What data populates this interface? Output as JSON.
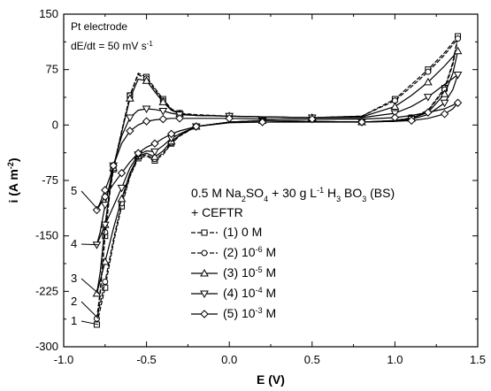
{
  "chart_data": {
    "type": "line",
    "xlabel": "E (V)",
    "ylabel": "i (A m-2)",
    "xlim": [
      -1.0,
      1.5
    ],
    "ylim": [
      -300,
      150
    ],
    "x_ticks": [
      "-1.0",
      "-0.5",
      "0.0",
      "0.5",
      "1.0",
      "1.5"
    ],
    "y_ticks": [
      "-300",
      "-225",
      "-150",
      "-75",
      "0",
      "75",
      "150"
    ],
    "annotations": {
      "electrode": "Pt electrode",
      "scan_rate_prefix": "dE/dt = 50 mV s",
      "scan_rate_exp": "-1"
    },
    "legend_title_line1": {
      "a": "0.5 M Na",
      "a_sub": "2",
      "b": "SO",
      "b_sub": "4",
      "c": "+ 30 g L",
      "c_sup": "-1",
      "d": " H",
      "d_sub": "3",
      "e": " BO",
      "e_sub": "3",
      "f": " (BS)"
    },
    "legend_title_line2": "+ CEFTR",
    "legend_placement": "lower-right",
    "series": [
      {
        "name": "(1) 0 M",
        "label_prefix": "(1) 0 M",
        "label_exp": "",
        "label_suffix": "",
        "curve_label": "1",
        "marker": "square",
        "dashed": true,
        "forward": [
          [
            -0.8,
            -270
          ],
          [
            -0.78,
            -230
          ],
          [
            -0.75,
            -150
          ],
          [
            -0.72,
            -90
          ],
          [
            -0.7,
            -60
          ],
          [
            -0.65,
            -10
          ],
          [
            -0.6,
            40
          ],
          [
            -0.55,
            70
          ],
          [
            -0.5,
            65
          ],
          [
            -0.45,
            50
          ],
          [
            -0.4,
            35
          ],
          [
            -0.35,
            22
          ],
          [
            -0.3,
            16
          ],
          [
            -0.2,
            14
          ],
          [
            0.0,
            12
          ],
          [
            0.2,
            11
          ],
          [
            0.5,
            10
          ],
          [
            0.8,
            12
          ],
          [
            1.0,
            35
          ],
          [
            1.1,
            55
          ],
          [
            1.2,
            75
          ],
          [
            1.3,
            98
          ],
          [
            1.38,
            120
          ]
        ],
        "reverse": [
          [
            1.38,
            120
          ],
          [
            1.35,
            85
          ],
          [
            1.3,
            50
          ],
          [
            1.2,
            20
          ],
          [
            1.1,
            10
          ],
          [
            1.0,
            6
          ],
          [
            0.8,
            4
          ],
          [
            0.5,
            5
          ],
          [
            0.2,
            6
          ],
          [
            0.0,
            4
          ],
          [
            -0.2,
            -2
          ],
          [
            -0.3,
            -15
          ],
          [
            -0.35,
            -25
          ],
          [
            -0.4,
            -40
          ],
          [
            -0.45,
            -48
          ],
          [
            -0.5,
            -42
          ],
          [
            -0.55,
            -45
          ],
          [
            -0.6,
            -70
          ],
          [
            -0.65,
            -110
          ],
          [
            -0.7,
            -160
          ],
          [
            -0.75,
            -220
          ],
          [
            -0.8,
            -270
          ]
        ]
      },
      {
        "name": "(2) 10 -6 M",
        "label_prefix": "(2) 10",
        "label_exp": "-6",
        "label_suffix": " M",
        "curve_label": "2",
        "marker": "circle",
        "dashed": true,
        "forward": [
          [
            -0.8,
            -262
          ],
          [
            -0.78,
            -225
          ],
          [
            -0.75,
            -145
          ],
          [
            -0.72,
            -88
          ],
          [
            -0.7,
            -58
          ],
          [
            -0.65,
            -8
          ],
          [
            -0.6,
            40
          ],
          [
            -0.55,
            68
          ],
          [
            -0.5,
            63
          ],
          [
            -0.45,
            48
          ],
          [
            -0.4,
            33
          ],
          [
            -0.35,
            21
          ],
          [
            -0.3,
            15
          ],
          [
            -0.2,
            13
          ],
          [
            0.0,
            12
          ],
          [
            0.2,
            11
          ],
          [
            0.5,
            10
          ],
          [
            0.8,
            12
          ],
          [
            1.0,
            33
          ],
          [
            1.1,
            52
          ],
          [
            1.2,
            72
          ],
          [
            1.3,
            95
          ],
          [
            1.38,
            117
          ]
        ],
        "reverse": [
          [
            1.38,
            117
          ],
          [
            1.35,
            82
          ],
          [
            1.3,
            48
          ],
          [
            1.2,
            19
          ],
          [
            1.1,
            9
          ],
          [
            1.0,
            6
          ],
          [
            0.8,
            4
          ],
          [
            0.5,
            5
          ],
          [
            0.2,
            6
          ],
          [
            0.0,
            4
          ],
          [
            -0.2,
            -2
          ],
          [
            -0.3,
            -14
          ],
          [
            -0.35,
            -24
          ],
          [
            -0.4,
            -38
          ],
          [
            -0.45,
            -46
          ],
          [
            -0.5,
            -40
          ],
          [
            -0.55,
            -43
          ],
          [
            -0.6,
            -68
          ],
          [
            -0.65,
            -106
          ],
          [
            -0.7,
            -155
          ],
          [
            -0.75,
            -212
          ],
          [
            -0.8,
            -262
          ]
        ]
      },
      {
        "name": "(3) 10 -5 M",
        "label_prefix": "(3) 10",
        "label_exp": "-5",
        "label_suffix": " M",
        "curve_label": "3",
        "marker": "triangle-up",
        "dashed": false,
        "forward": [
          [
            -0.8,
            -228
          ],
          [
            -0.78,
            -200
          ],
          [
            -0.75,
            -135
          ],
          [
            -0.72,
            -85
          ],
          [
            -0.7,
            -58
          ],
          [
            -0.65,
            -10
          ],
          [
            -0.6,
            36
          ],
          [
            -0.55,
            62
          ],
          [
            -0.5,
            60
          ],
          [
            -0.45,
            45
          ],
          [
            -0.4,
            31
          ],
          [
            -0.35,
            20
          ],
          [
            -0.3,
            15
          ],
          [
            -0.2,
            13
          ],
          [
            0.0,
            12
          ],
          [
            0.2,
            11
          ],
          [
            0.5,
            10
          ],
          [
            0.8,
            11
          ],
          [
            1.0,
            25
          ],
          [
            1.1,
            40
          ],
          [
            1.2,
            58
          ],
          [
            1.3,
            80
          ],
          [
            1.38,
            100
          ]
        ],
        "reverse": [
          [
            1.38,
            100
          ],
          [
            1.35,
            70
          ],
          [
            1.3,
            42
          ],
          [
            1.2,
            17
          ],
          [
            1.1,
            9
          ],
          [
            1.0,
            6
          ],
          [
            0.8,
            4
          ],
          [
            0.5,
            5
          ],
          [
            0.2,
            6
          ],
          [
            0.0,
            4
          ],
          [
            -0.2,
            -2
          ],
          [
            -0.3,
            -14
          ],
          [
            -0.35,
            -22
          ],
          [
            -0.4,
            -35
          ],
          [
            -0.45,
            -43
          ],
          [
            -0.5,
            -38
          ],
          [
            -0.55,
            -42
          ],
          [
            -0.6,
            -65
          ],
          [
            -0.65,
            -100
          ],
          [
            -0.7,
            -140
          ],
          [
            -0.75,
            -185
          ],
          [
            -0.8,
            -228
          ]
        ]
      },
      {
        "name": "(4) 10 -4 M",
        "label_prefix": "(4) 10",
        "label_exp": "-4",
        "label_suffix": " M",
        "curve_label": "4",
        "marker": "triangle-down",
        "dashed": false,
        "forward": [
          [
            -0.8,
            -162
          ],
          [
            -0.78,
            -145
          ],
          [
            -0.75,
            -108
          ],
          [
            -0.72,
            -78
          ],
          [
            -0.7,
            -55
          ],
          [
            -0.65,
            -15
          ],
          [
            -0.6,
            10
          ],
          [
            -0.55,
            20
          ],
          [
            -0.5,
            22
          ],
          [
            -0.45,
            21
          ],
          [
            -0.4,
            19
          ],
          [
            -0.35,
            16
          ],
          [
            -0.3,
            14
          ],
          [
            -0.2,
            13
          ],
          [
            0.0,
            12
          ],
          [
            0.2,
            11
          ],
          [
            0.5,
            10
          ],
          [
            0.8,
            10
          ],
          [
            1.0,
            16
          ],
          [
            1.1,
            25
          ],
          [
            1.2,
            38
          ],
          [
            1.3,
            55
          ],
          [
            1.38,
            68
          ]
        ],
        "reverse": [
          [
            1.38,
            68
          ],
          [
            1.35,
            48
          ],
          [
            1.3,
            30
          ],
          [
            1.2,
            14
          ],
          [
            1.1,
            8
          ],
          [
            1.0,
            5
          ],
          [
            0.8,
            4
          ],
          [
            0.5,
            5
          ],
          [
            0.2,
            6
          ],
          [
            0.0,
            4
          ],
          [
            -0.2,
            -2
          ],
          [
            -0.3,
            -12
          ],
          [
            -0.35,
            -18
          ],
          [
            -0.4,
            -28
          ],
          [
            -0.45,
            -36
          ],
          [
            -0.5,
            -35
          ],
          [
            -0.55,
            -40
          ],
          [
            -0.6,
            -58
          ],
          [
            -0.65,
            -85
          ],
          [
            -0.7,
            -110
          ],
          [
            -0.75,
            -135
          ],
          [
            -0.8,
            -162
          ]
        ]
      },
      {
        "name": "(5) 10 -3 M",
        "label_prefix": "(5) 10",
        "label_exp": "-3",
        "label_suffix": " M",
        "curve_label": "5",
        "marker": "diamond",
        "dashed": false,
        "forward": [
          [
            -0.8,
            -115
          ],
          [
            -0.78,
            -105
          ],
          [
            -0.75,
            -88
          ],
          [
            -0.72,
            -70
          ],
          [
            -0.7,
            -55
          ],
          [
            -0.65,
            -25
          ],
          [
            -0.6,
            -8
          ],
          [
            -0.55,
            0
          ],
          [
            -0.5,
            5
          ],
          [
            -0.45,
            7
          ],
          [
            -0.4,
            8
          ],
          [
            -0.35,
            9
          ],
          [
            -0.3,
            9
          ],
          [
            -0.2,
            9
          ],
          [
            0.0,
            9
          ],
          [
            0.2,
            8
          ],
          [
            0.5,
            8
          ],
          [
            0.8,
            8
          ],
          [
            1.0,
            10
          ],
          [
            1.1,
            13
          ],
          [
            1.2,
            17
          ],
          [
            1.3,
            22
          ],
          [
            1.38,
            30
          ]
        ],
        "reverse": [
          [
            1.38,
            30
          ],
          [
            1.35,
            22
          ],
          [
            1.3,
            15
          ],
          [
            1.2,
            9
          ],
          [
            1.1,
            6
          ],
          [
            1.0,
            5
          ],
          [
            0.8,
            4
          ],
          [
            0.5,
            4
          ],
          [
            0.2,
            4
          ],
          [
            0.0,
            3
          ],
          [
            -0.2,
            -2
          ],
          [
            -0.3,
            -8
          ],
          [
            -0.35,
            -12
          ],
          [
            -0.4,
            -18
          ],
          [
            -0.45,
            -25
          ],
          [
            -0.5,
            -30
          ],
          [
            -0.55,
            -38
          ],
          [
            -0.6,
            -50
          ],
          [
            -0.65,
            -65
          ],
          [
            -0.7,
            -80
          ],
          [
            -0.75,
            -97
          ],
          [
            -0.8,
            -115
          ]
        ]
      }
    ]
  }
}
